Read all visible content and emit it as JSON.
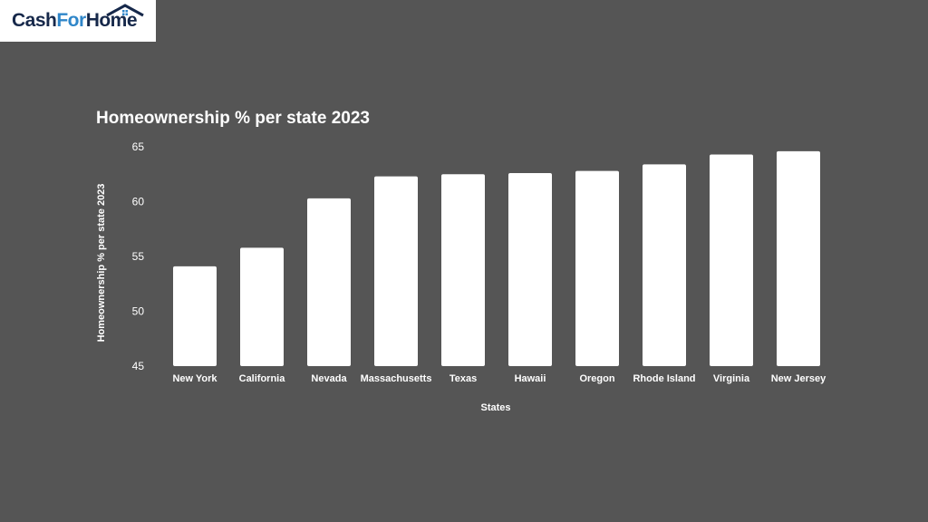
{
  "logo": {
    "part1": "Cash",
    "part2": "For",
    "part3": "Home"
  },
  "colors": {
    "background": "#555555",
    "bars": "#ffffff",
    "text": "#ffffff",
    "logo_dark": "#16284a",
    "logo_blue": "#2f86c9"
  },
  "chart_data": {
    "type": "bar",
    "title": "Homeownership % per state 2023",
    "xlabel": "States",
    "ylabel": "Homeownership % per state 2023",
    "categories": [
      "New York",
      "California",
      "Nevada",
      "Massachusetts",
      "Texas",
      "Hawaii",
      "Oregon",
      "Rhode Island",
      "Virginia",
      "New Jersey"
    ],
    "values": [
      54.1,
      55.8,
      60.3,
      62.3,
      62.5,
      62.6,
      62.8,
      63.4,
      64.3,
      64.6
    ],
    "ylim": [
      45,
      65
    ],
    "yticks": [
      45,
      50,
      55,
      60,
      65
    ],
    "grid": false,
    "legend": "none"
  }
}
